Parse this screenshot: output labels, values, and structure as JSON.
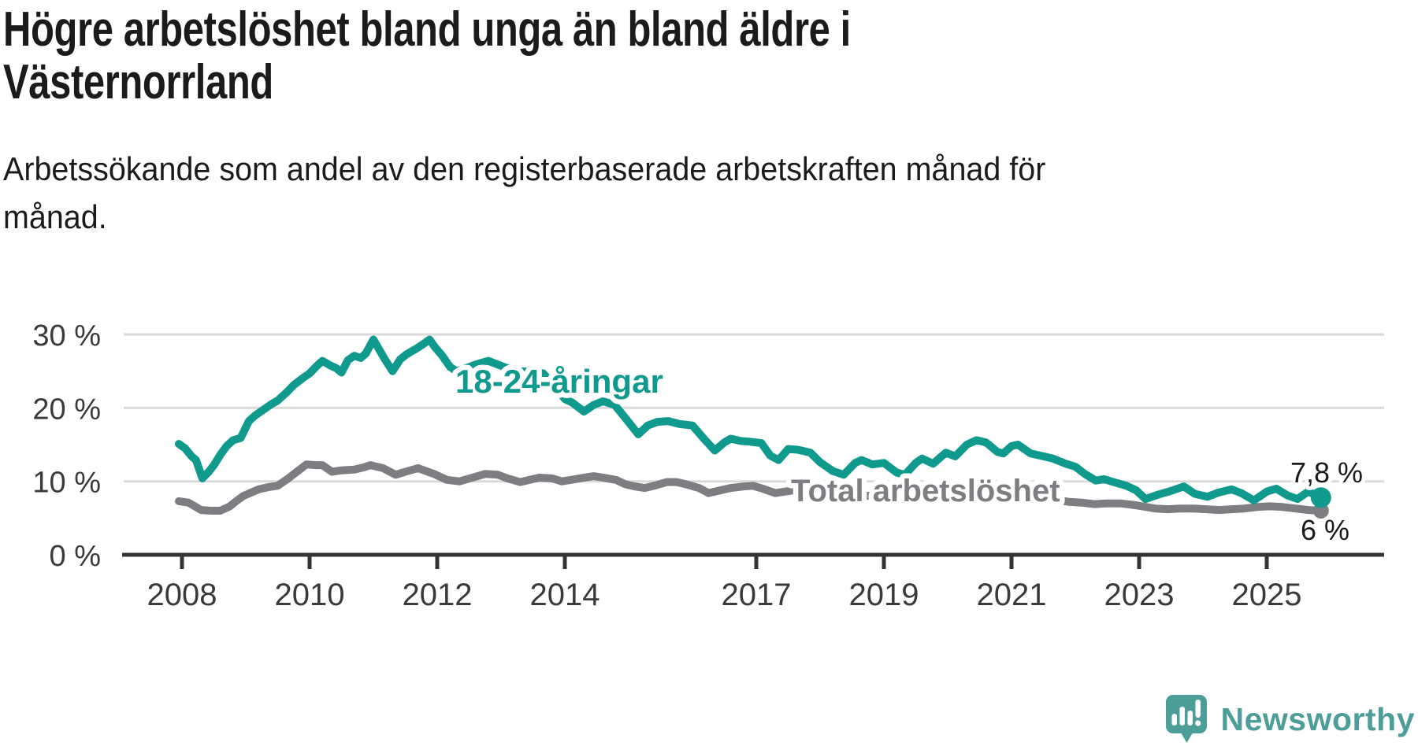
{
  "header": {
    "title": "Högre arbetslöshet bland unga än bland äldre i Västernorrland",
    "title_lines": [
      "Högre arbetslöshet bland unga än bland äldre i",
      "Västernorrland"
    ],
    "subtitle": "Arbetssökande som andel av den registerbaserade arbetskraften månad för månad.",
    "subtitle_lines": [
      "Arbetssökande som andel av den registerbaserade arbetskraften månad för",
      "månad."
    ]
  },
  "branding": {
    "logo_text": "Newsworthy",
    "logo_icon": "speech-bubble-bar-chart-icon"
  },
  "colors": {
    "background": "#ffffff",
    "text": "#1b1b1b",
    "tick_label": "#3a3a3a",
    "value_label": "#1a1a1a",
    "grid": "#dadada",
    "axis": "#333333",
    "young_line": "#0f9a8d",
    "total_line": "#7d7e82",
    "logo": "#4d9e99",
    "label_halo": "#ffffff"
  },
  "chart_data": {
    "type": "line",
    "title": "Högre arbetslöshet bland unga än bland äldre i Västernorrland",
    "subtitle": "Arbetssökande som andel av den registerbaserade arbetskraften månad för månad.",
    "xlabel": "",
    "ylabel": "",
    "grid": "horizontal",
    "legend_position": "inline-labels",
    "x_axis": {
      "ticks": [
        2008,
        2010,
        2012,
        2014,
        2017,
        2019,
        2021,
        2023,
        2025
      ],
      "tick_labels": [
        "2008",
        "2010",
        "2012",
        "2014",
        "2017",
        "2019",
        "2021",
        "2023",
        "2025"
      ],
      "range": [
        2007.4,
        2026.6
      ]
    },
    "y_axis": {
      "ticks": [
        0,
        10,
        20,
        30
      ],
      "tick_labels": [
        "0 %",
        "10 %",
        "20 %",
        "30 %"
      ],
      "range": [
        0,
        31.6
      ],
      "unit": "%"
    },
    "series": [
      {
        "name": "18-24-åringar",
        "color_key": "young_line",
        "end_value": 7.8,
        "end_label": "7,8 %",
        "points": [
          [
            2007.95,
            15.1
          ],
          [
            2008.05,
            14.5
          ],
          [
            2008.15,
            13.4
          ],
          [
            2008.22,
            12.9
          ],
          [
            2008.32,
            10.4
          ],
          [
            2008.42,
            11.3
          ],
          [
            2008.5,
            12.2
          ],
          [
            2008.6,
            13.6
          ],
          [
            2008.7,
            14.8
          ],
          [
            2008.8,
            15.6
          ],
          [
            2008.92,
            15.9
          ],
          [
            2009.05,
            18.2
          ],
          [
            2009.15,
            19.0
          ],
          [
            2009.25,
            19.6
          ],
          [
            2009.4,
            20.5
          ],
          [
            2009.5,
            21.0
          ],
          [
            2009.65,
            22.2
          ],
          [
            2009.75,
            23.1
          ],
          [
            2009.9,
            24.1
          ],
          [
            2010.0,
            24.7
          ],
          [
            2010.1,
            25.6
          ],
          [
            2010.2,
            26.4
          ],
          [
            2010.32,
            25.8
          ],
          [
            2010.42,
            25.4
          ],
          [
            2010.5,
            24.8
          ],
          [
            2010.6,
            26.5
          ],
          [
            2010.7,
            27.1
          ],
          [
            2010.8,
            26.8
          ],
          [
            2010.88,
            27.4
          ],
          [
            2011.0,
            29.3
          ],
          [
            2011.1,
            27.8
          ],
          [
            2011.18,
            26.6
          ],
          [
            2011.3,
            25.0
          ],
          [
            2011.42,
            26.6
          ],
          [
            2011.52,
            27.3
          ],
          [
            2011.68,
            28.1
          ],
          [
            2011.8,
            28.8
          ],
          [
            2011.88,
            29.3
          ],
          [
            2011.97,
            28.2
          ],
          [
            2012.07,
            27.2
          ],
          [
            2012.2,
            25.6
          ],
          [
            2012.3,
            25.0
          ],
          [
            2012.45,
            25.4
          ],
          [
            2012.6,
            25.9
          ],
          [
            2012.8,
            26.4
          ],
          [
            2012.95,
            25.9
          ],
          [
            2013.1,
            25.4
          ],
          [
            2013.3,
            25.0
          ],
          [
            2013.5,
            24.9
          ],
          [
            2013.66,
            24.7
          ],
          [
            2013.82,
            23.2
          ],
          [
            2014.0,
            21.2
          ],
          [
            2014.12,
            20.7
          ],
          [
            2014.3,
            19.5
          ],
          [
            2014.45,
            20.4
          ],
          [
            2014.6,
            20.9
          ],
          [
            2014.78,
            20.4
          ],
          [
            2014.95,
            18.6
          ],
          [
            2015.15,
            16.4
          ],
          [
            2015.3,
            17.6
          ],
          [
            2015.45,
            18.1
          ],
          [
            2015.62,
            18.2
          ],
          [
            2015.8,
            17.8
          ],
          [
            2016.0,
            17.6
          ],
          [
            2016.2,
            15.6
          ],
          [
            2016.35,
            14.2
          ],
          [
            2016.5,
            15.3
          ],
          [
            2016.6,
            15.8
          ],
          [
            2016.75,
            15.5
          ],
          [
            2016.9,
            15.4
          ],
          [
            2017.08,
            15.2
          ],
          [
            2017.22,
            13.5
          ],
          [
            2017.35,
            12.9
          ],
          [
            2017.5,
            14.4
          ],
          [
            2017.65,
            14.3
          ],
          [
            2017.85,
            13.9
          ],
          [
            2018.0,
            12.6
          ],
          [
            2018.2,
            11.4
          ],
          [
            2018.37,
            10.9
          ],
          [
            2018.55,
            12.5
          ],
          [
            2018.65,
            12.9
          ],
          [
            2018.82,
            12.3
          ],
          [
            2019.0,
            12.5
          ],
          [
            2019.2,
            11.2
          ],
          [
            2019.33,
            10.9
          ],
          [
            2019.5,
            12.5
          ],
          [
            2019.6,
            13.1
          ],
          [
            2019.77,
            12.4
          ],
          [
            2019.97,
            13.9
          ],
          [
            2020.12,
            13.4
          ],
          [
            2020.3,
            15.0
          ],
          [
            2020.45,
            15.6
          ],
          [
            2020.6,
            15.3
          ],
          [
            2020.78,
            14.0
          ],
          [
            2020.87,
            13.8
          ],
          [
            2021.0,
            14.8
          ],
          [
            2021.1,
            15.0
          ],
          [
            2021.3,
            13.8
          ],
          [
            2021.5,
            13.4
          ],
          [
            2021.65,
            13.1
          ],
          [
            2021.85,
            12.4
          ],
          [
            2022.0,
            12.0
          ],
          [
            2022.15,
            11.0
          ],
          [
            2022.32,
            10.1
          ],
          [
            2022.45,
            10.3
          ],
          [
            2022.6,
            9.9
          ],
          [
            2022.8,
            9.4
          ],
          [
            2022.95,
            8.8
          ],
          [
            2023.1,
            7.6
          ],
          [
            2023.3,
            8.2
          ],
          [
            2023.5,
            8.7
          ],
          [
            2023.7,
            9.3
          ],
          [
            2023.87,
            8.3
          ],
          [
            2024.07,
            7.9
          ],
          [
            2024.25,
            8.5
          ],
          [
            2024.45,
            8.9
          ],
          [
            2024.6,
            8.4
          ],
          [
            2024.8,
            7.4
          ],
          [
            2025.0,
            8.6
          ],
          [
            2025.15,
            9.0
          ],
          [
            2025.32,
            8.1
          ],
          [
            2025.48,
            7.6
          ],
          [
            2025.65,
            8.6
          ],
          [
            2025.85,
            7.8
          ]
        ]
      },
      {
        "name": "Total arbetslöshet",
        "color_key": "total_line",
        "end_value": 6,
        "end_label": "6 %",
        "points": [
          [
            2007.95,
            7.3
          ],
          [
            2008.1,
            7.1
          ],
          [
            2008.3,
            6.1
          ],
          [
            2008.45,
            6.0
          ],
          [
            2008.6,
            6.0
          ],
          [
            2008.75,
            6.6
          ],
          [
            2008.85,
            7.3
          ],
          [
            2008.96,
            8.0
          ],
          [
            2009.2,
            8.9
          ],
          [
            2009.35,
            9.2
          ],
          [
            2009.5,
            9.4
          ],
          [
            2009.65,
            10.3
          ],
          [
            2009.8,
            11.3
          ],
          [
            2009.95,
            12.3
          ],
          [
            2010.1,
            12.2
          ],
          [
            2010.2,
            12.2
          ],
          [
            2010.35,
            11.3
          ],
          [
            2010.5,
            11.5
          ],
          [
            2010.7,
            11.6
          ],
          [
            2010.85,
            11.9
          ],
          [
            2010.95,
            12.2
          ],
          [
            2011.15,
            11.8
          ],
          [
            2011.35,
            10.9
          ],
          [
            2011.5,
            11.3
          ],
          [
            2011.7,
            11.8
          ],
          [
            2011.95,
            11.0
          ],
          [
            2012.15,
            10.2
          ],
          [
            2012.35,
            10.0
          ],
          [
            2012.55,
            10.5
          ],
          [
            2012.75,
            11.0
          ],
          [
            2012.95,
            10.9
          ],
          [
            2013.1,
            10.4
          ],
          [
            2013.3,
            9.9
          ],
          [
            2013.45,
            10.2
          ],
          [
            2013.6,
            10.5
          ],
          [
            2013.8,
            10.4
          ],
          [
            2013.95,
            10.0
          ],
          [
            2014.1,
            10.2
          ],
          [
            2014.3,
            10.5
          ],
          [
            2014.45,
            10.7
          ],
          [
            2014.6,
            10.5
          ],
          [
            2014.8,
            10.2
          ],
          [
            2014.95,
            9.6
          ],
          [
            2015.1,
            9.3
          ],
          [
            2015.25,
            9.1
          ],
          [
            2015.4,
            9.4
          ],
          [
            2015.6,
            9.9
          ],
          [
            2015.75,
            9.9
          ],
          [
            2015.9,
            9.6
          ],
          [
            2016.1,
            9.1
          ],
          [
            2016.25,
            8.4
          ],
          [
            2016.45,
            8.8
          ],
          [
            2016.6,
            9.1
          ],
          [
            2016.8,
            9.3
          ],
          [
            2016.95,
            9.4
          ],
          [
            2017.1,
            9.0
          ],
          [
            2017.3,
            8.4
          ],
          [
            2017.45,
            8.6
          ],
          [
            2017.6,
            8.8
          ],
          [
            2017.75,
            8.9
          ],
          [
            2017.9,
            8.7
          ],
          [
            2018.1,
            8.4
          ],
          [
            2018.3,
            8.1
          ],
          [
            2018.5,
            8.0
          ],
          [
            2018.7,
            8.0
          ],
          [
            2018.9,
            8.1
          ],
          [
            2019.1,
            7.8
          ],
          [
            2019.3,
            7.6
          ],
          [
            2019.5,
            7.5
          ],
          [
            2019.7,
            7.6
          ],
          [
            2019.9,
            7.7
          ],
          [
            2020.1,
            8.0
          ],
          [
            2020.3,
            8.4
          ],
          [
            2020.5,
            8.7
          ],
          [
            2020.7,
            8.6
          ],
          [
            2020.9,
            8.4
          ],
          [
            2021.1,
            8.2
          ],
          [
            2021.3,
            8.0
          ],
          [
            2021.5,
            7.8
          ],
          [
            2021.7,
            7.5
          ],
          [
            2021.9,
            7.2
          ],
          [
            2022.1,
            7.1
          ],
          [
            2022.3,
            6.9
          ],
          [
            2022.5,
            7.0
          ],
          [
            2022.7,
            7.0
          ],
          [
            2022.9,
            6.8
          ],
          [
            2023.05,
            6.6
          ],
          [
            2023.25,
            6.3
          ],
          [
            2023.45,
            6.2
          ],
          [
            2023.65,
            6.3
          ],
          [
            2023.85,
            6.3
          ],
          [
            2024.05,
            6.2
          ],
          [
            2024.25,
            6.1
          ],
          [
            2024.45,
            6.2
          ],
          [
            2024.65,
            6.3
          ],
          [
            2024.85,
            6.5
          ],
          [
            2025.05,
            6.6
          ],
          [
            2025.25,
            6.5
          ],
          [
            2025.45,
            6.3
          ],
          [
            2025.65,
            6.1
          ],
          [
            2025.85,
            6.0
          ]
        ]
      }
    ]
  }
}
